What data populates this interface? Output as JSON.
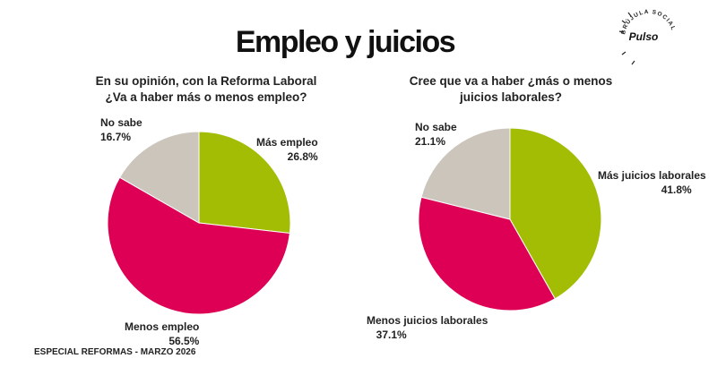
{
  "title": "Empleo y juicios",
  "footer": "ESPECIAL REFORMAS - MARZO 2026",
  "logo": {
    "brand": "Pulso",
    "ring_text": "BRÚJULA SOCIAL"
  },
  "colors": {
    "green": "#a3bd05",
    "magenta": "#dd0055",
    "beige": "#cbc5bb"
  },
  "chart_data": [
    {
      "type": "pie",
      "title": "En su opinión, con la Reforma Laboral ¿Va a haber más o menos empleo?",
      "title_lines": [
        "En su opinión, con la Reforma Laboral",
        "¿Va a haber más o menos empleo?"
      ],
      "slices": [
        {
          "label": "Más empleo",
          "value": 26.8,
          "value_label": "26.8%",
          "color": "#a3bd05"
        },
        {
          "label": "Menos empleo",
          "value": 56.5,
          "value_label": "56.5%",
          "color": "#dd0055"
        },
        {
          "label": "No sabe",
          "value": 16.7,
          "value_label": "16.7%",
          "color": "#cbc5bb"
        }
      ]
    },
    {
      "type": "pie",
      "title": "Cree que va a haber ¿más o menos juicios laborales?",
      "title_lines": [
        "Cree que va a haber ¿más o menos",
        "juicios laborales?"
      ],
      "slices": [
        {
          "label": "Más juicios laborales",
          "value": 41.8,
          "value_label": "41.8%",
          "color": "#a3bd05"
        },
        {
          "label": "Menos juicios laborales",
          "value": 37.1,
          "value_label": "37.1%",
          "color": "#dd0055"
        },
        {
          "label": "No sabe",
          "value": 21.1,
          "value_label": "21.1%",
          "color": "#cbc5bb"
        }
      ]
    }
  ]
}
